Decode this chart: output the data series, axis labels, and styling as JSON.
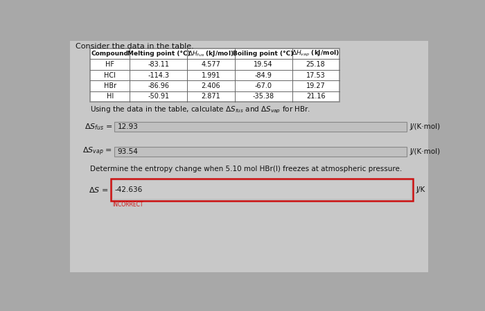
{
  "title": "Consider the data in the table.",
  "header_texts": [
    "Compound",
    "Melting point (°C)",
    "ΔH₟us (kJ/mol)",
    "Boiling point (°C)",
    "ΔHᵥap (kJ/mol)"
  ],
  "header_math": [
    false,
    false,
    true,
    false,
    true
  ],
  "header_latex": [
    "Compound",
    "Melting point (°C)",
    "$\\Delta H_{fus}$ (kJ/mol)",
    "Boiling point (°C)",
    "$\\Delta H_{vap}$ (kJ/mol)"
  ],
  "rows": [
    [
      "HF",
      "-83.11",
      "4.577",
      "19.54",
      "25.18"
    ],
    [
      "HCl",
      "-114.3",
      "1.991",
      "-84.9",
      "17.53"
    ],
    [
      "HBr",
      "-86.96",
      "2.406",
      "-67.0",
      "19.27"
    ],
    [
      "HI",
      "-50.91",
      "2.871",
      "-35.38",
      "21.16"
    ]
  ],
  "q1_text": "Using the data in the table, calculate $\\Delta S_{fus}$ and $\\Delta S_{vap}$ for HBr.",
  "label1": "$\\Delta S_{fus}$ =",
  "value1": "12.93",
  "unit1": "J/(K·mol)",
  "label2": "$\\Delta S_{vap}$ =",
  "value2": "93.54",
  "unit2": "J/(K·mol)",
  "q2_text": "Determine the entropy change when 5.10 mol HBr(l) freezes at atmospheric pressure.",
  "label3": "$\\Delta S$ =",
  "value3": "-42.636",
  "unit3": "J/K",
  "incorrect_text": "INCORRECT",
  "bg_outer": "#a8a8a8",
  "bg_inner": "#c8c8c8",
  "table_fill": "#ffffff",
  "answer_fill": "#c0c0c0",
  "answer_border": "#888888",
  "wrong_border": "#cc1111",
  "text_color": "#111111"
}
